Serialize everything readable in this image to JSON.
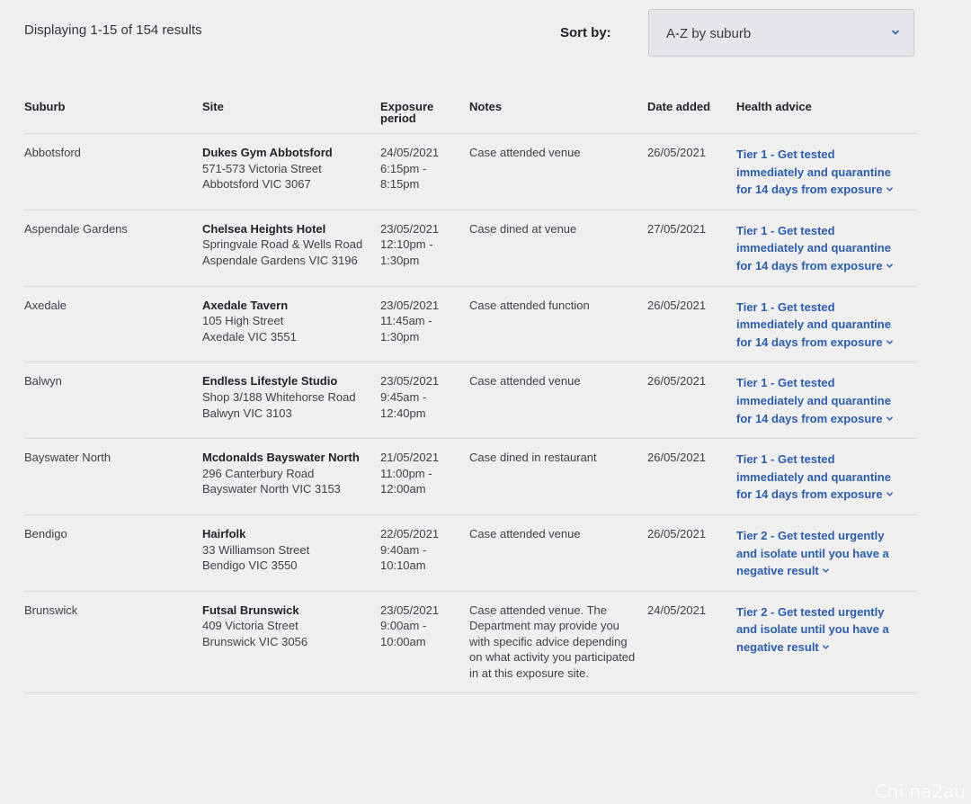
{
  "results": {
    "text": "Displaying 1-15 of 154 results"
  },
  "sort": {
    "label": "Sort by:",
    "value": "A-Z by suburb",
    "icon": "chevron-down-icon"
  },
  "table": {
    "headers": {
      "suburb": "Suburb",
      "site": "Site",
      "exposure_line1": "Exposure",
      "exposure_line2": "period",
      "notes": "Notes",
      "date_added": "Date added",
      "health_advice": "Health advice"
    },
    "rows": [
      {
        "suburb": "Abbotsford",
        "site_name": "Dukes Gym Abbotsford",
        "site_addr": [
          "571-573 Victoria Street",
          "Abbotsford VIC 3067"
        ],
        "date": "24/05/2021",
        "time_from": "6:15pm -",
        "time_to": "8:15pm",
        "notes": "Case attended venue",
        "date_added": "26/05/2021",
        "advice": "Tier 1 - Get tested immediately and quarantine for 14 days from exposure"
      },
      {
        "suburb": "Aspendale Gardens",
        "site_name": "Chelsea Heights Hotel",
        "site_addr": [
          "Springvale Road & Wells Road",
          "Aspendale Gardens VIC 3196"
        ],
        "date": "23/05/2021",
        "time_from": "12:10pm -",
        "time_to": "1:30pm",
        "notes": "Case dined at venue",
        "date_added": "27/05/2021",
        "advice": "Tier 1 - Get tested immediately and quarantine for 14 days from exposure"
      },
      {
        "suburb": "Axedale",
        "site_name": "Axedale Tavern",
        "site_addr": [
          "105 High Street",
          "Axedale VIC 3551"
        ],
        "date": "23/05/2021",
        "time_from": "11:45am -",
        "time_to": "1:30pm",
        "notes": "Case attended function",
        "date_added": "26/05/2021",
        "advice": "Tier 1 - Get tested immediately and quarantine for 14 days from exposure"
      },
      {
        "suburb": "Balwyn",
        "site_name": "Endless Lifestyle Studio",
        "site_addr": [
          "Shop 3/188 Whitehorse Road",
          "Balwyn VIC 3103"
        ],
        "date": "23/05/2021",
        "time_from": "9:45am -",
        "time_to": "12:40pm",
        "notes": "Case attended venue",
        "date_added": "26/05/2021",
        "advice": "Tier 1 - Get tested immediately and quarantine for 14 days from exposure"
      },
      {
        "suburb": "Bayswater North",
        "site_name": "Mcdonalds Bayswater North",
        "site_addr": [
          "296 Canterbury Road",
          "Bayswater North VIC 3153"
        ],
        "date": "21/05/2021",
        "time_from": "11:00pm -",
        "time_to": "12:00am",
        "notes": "Case dined in restaurant",
        "date_added": "26/05/2021",
        "advice": "Tier 1 - Get tested immediately and quarantine for 14 days from exposure"
      },
      {
        "suburb": "Bendigo",
        "site_name": "Hairfolk",
        "site_addr": [
          "33 Williamson Street",
          "Bendigo VIC 3550"
        ],
        "date": "22/05/2021",
        "time_from": "9:40am -",
        "time_to": "10:10am",
        "notes": "Case attended venue",
        "date_added": "26/05/2021",
        "advice": "Tier 2 - Get tested urgently and isolate until you have a negative result"
      },
      {
        "suburb": "Brunswick",
        "site_name": "Futsal Brunswick",
        "site_addr": [
          "409 Victoria Street",
          "Brunswick VIC 3056"
        ],
        "date": "23/05/2021",
        "time_from": "9:00am -",
        "time_to": "10:00am",
        "notes": "Case attended venue. The Department may provide you with specific advice depending on what activity you participated in at this exposure site.",
        "date_added": "24/05/2021",
        "advice": "Tier 2 - Get tested urgently and isolate until you have a negative result"
      }
    ]
  },
  "watermark": "Chi na2au",
  "colors": {
    "link": "#2a5db0",
    "background": "#efefef"
  }
}
